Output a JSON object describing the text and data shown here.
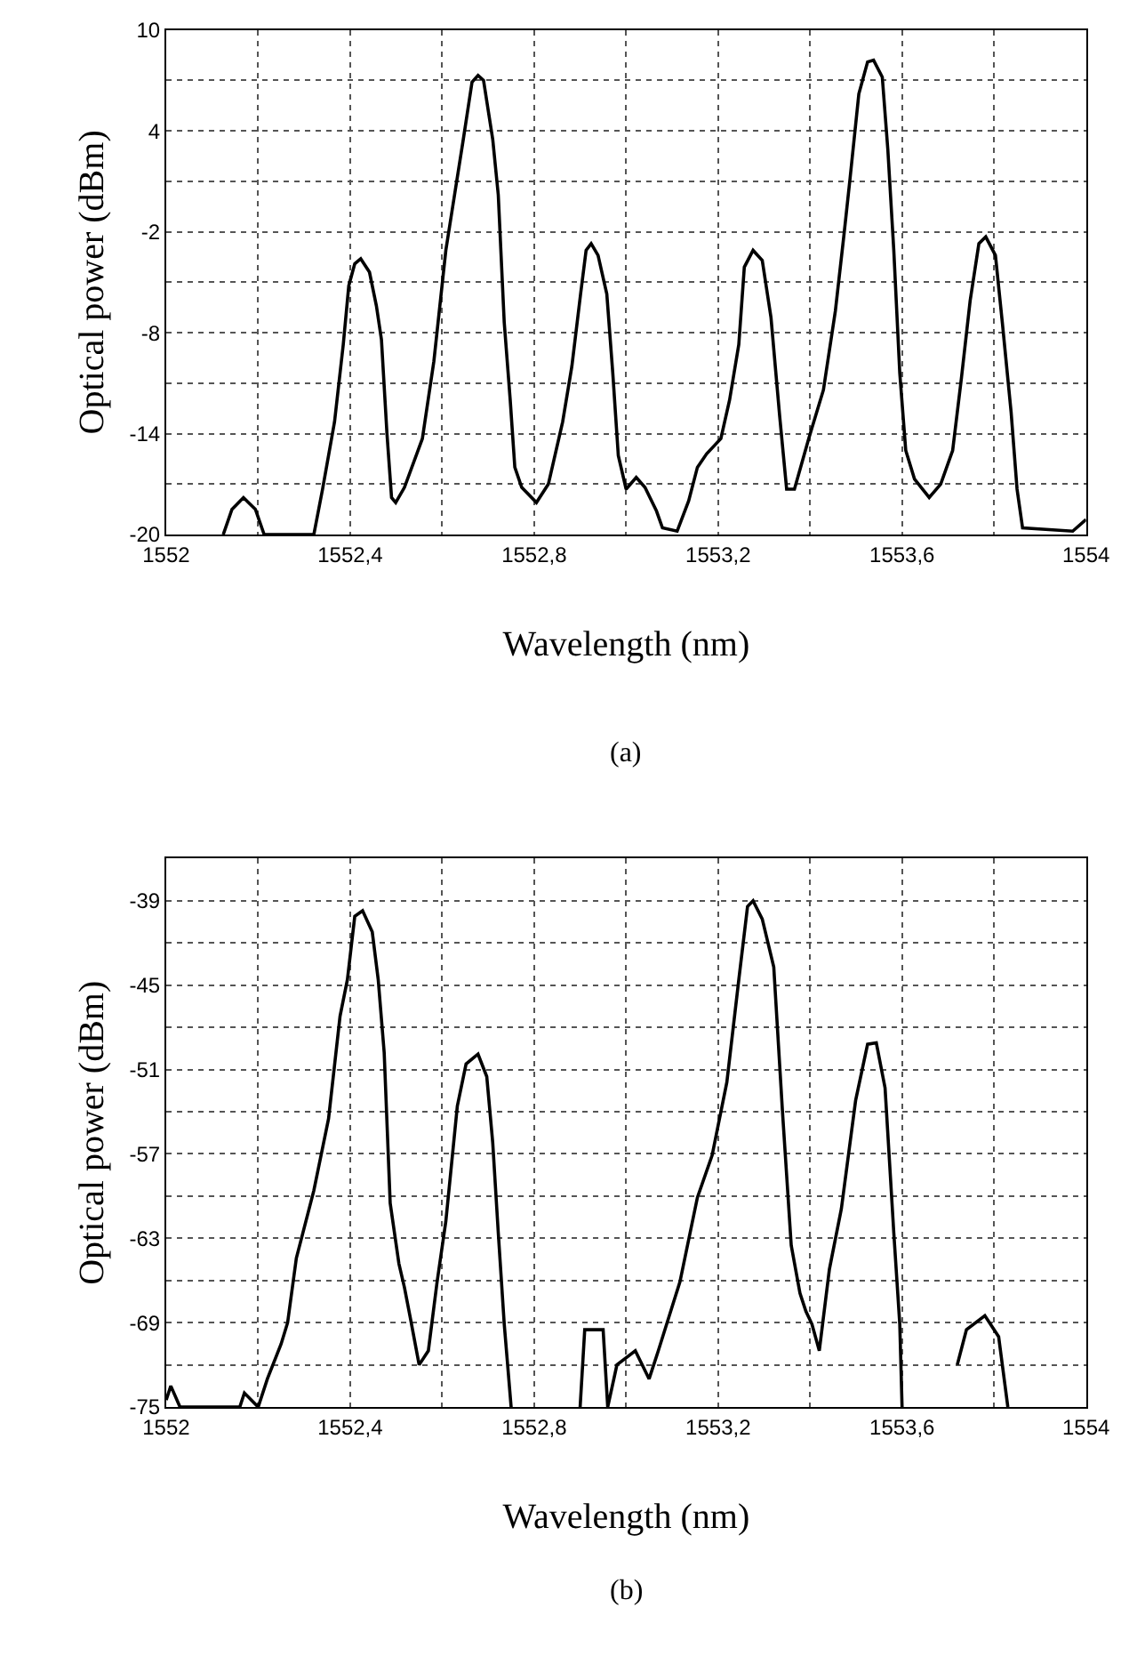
{
  "chart_data": [
    {
      "type": "line",
      "xlabel": "Wavelength (nm)",
      "ylabel": "Optical power (dBm)",
      "annotations": [
        "(a)"
      ],
      "grid": true,
      "marker": "none",
      "line_style": "solid",
      "xlim": [
        1552,
        1554
      ],
      "ylim": [
        -20,
        10
      ],
      "xticks": [
        1552,
        {
          "value": 1552.2,
          "label": null
        },
        {
          "value": 1552.4,
          "label": "1552,4"
        },
        {
          "value": 1552.6,
          "label": null
        },
        {
          "value": 1552.8,
          "label": "1552,8"
        },
        {
          "value": 1553,
          "label": null
        },
        {
          "value": 1553.2,
          "label": "1553,2"
        },
        {
          "value": 1553.4,
          "label": null
        },
        {
          "value": 1553.6,
          "label": "1553,6"
        },
        {
          "value": 1553.8,
          "label": null
        },
        1554
      ],
      "yticks": [
        -20,
        {
          "value": -17,
          "label": null
        },
        -14,
        {
          "value": -11,
          "label": null
        },
        -8,
        {
          "value": -5,
          "label": null
        },
        -2,
        {
          "value": 1,
          "label": null
        },
        4,
        {
          "value": 7,
          "label": null
        },
        10
      ],
      "series": [
        {
          "color": "#000000",
          "x": [
            1552.124,
            1552.143,
            1552.168,
            1552.194,
            1552.213,
            1552.321,
            1552.34,
            1552.366,
            1552.385,
            1552.397,
            1552.41,
            1552.423,
            1552.442,
            1552.457,
            1552.468,
            1552.48,
            1552.49,
            1552.499,
            1552.518,
            1552.557,
            1552.582,
            1552.608,
            1552.627,
            1552.646,
            1552.665,
            1552.678,
            1552.69,
            1552.71,
            1552.722,
            1552.735,
            1552.748,
            1552.758,
            1552.773,
            1552.805,
            1552.831,
            1552.862,
            1552.882,
            1552.901,
            1552.913,
            1552.924,
            1552.939,
            1552.958,
            1552.971,
            1552.983,
            1553.0,
            1553.022,
            1553.041,
            1553.066,
            1553.079,
            1553.111,
            1553.136,
            1553.155,
            1553.175,
            1553.206,
            1553.225,
            1553.245,
            1553.257,
            1553.276,
            1553.296,
            1553.315,
            1553.334,
            1553.349,
            1553.366,
            1553.397,
            1553.429,
            1553.455,
            1553.474,
            1553.487,
            1553.506,
            1553.525,
            1553.538,
            1553.557,
            1553.569,
            1553.582,
            1553.595,
            1553.608,
            1553.627,
            1553.659,
            1553.684,
            1553.71,
            1553.729,
            1553.748,
            1553.767,
            1553.782,
            1553.803,
            1553.818,
            1553.837,
            1553.85,
            1553.862,
            1553.971,
            1554.0
          ],
          "values": [
            -20,
            -18.5,
            -17.8,
            -18.5,
            -20,
            -20,
            -17.3,
            -13.3,
            -8.7,
            -5.2,
            -3.9,
            -3.6,
            -4.4,
            -6.4,
            -8.4,
            -14,
            -17.8,
            -18.1,
            -17.2,
            -14.3,
            -9.7,
            -3.1,
            0.2,
            3.5,
            6.9,
            7.3,
            7.0,
            3.5,
            0.2,
            -7.4,
            -12,
            -16,
            -17.2,
            -18.1,
            -17,
            -13.3,
            -10,
            -5.7,
            -3.1,
            -2.7,
            -3.4,
            -5.7,
            -10.4,
            -15.3,
            -17.3,
            -16.6,
            -17.2,
            -18.6,
            -19.6,
            -19.8,
            -18,
            -16,
            -15.2,
            -14.3,
            -12,
            -8.7,
            -4.1,
            -3.1,
            -3.7,
            -7.1,
            -13,
            -17.3,
            -17.3,
            -14.3,
            -11.4,
            -6.7,
            -2.1,
            1.2,
            6.2,
            8.1,
            8.2,
            7.2,
            2.9,
            -3.1,
            -10.4,
            -15,
            -16.7,
            -17.8,
            -17,
            -15,
            -10.7,
            -6.1,
            -2.7,
            -2.3,
            -3.4,
            -7.4,
            -12.7,
            -17.3,
            -19.6,
            -19.8,
            -19.1
          ]
        }
      ]
    },
    {
      "type": "line",
      "xlabel": "Wavelength (nm)",
      "ylabel": "Optical power (dBm)",
      "annotations": [
        "(b)"
      ],
      "grid": true,
      "marker": "none",
      "line_style": "solid",
      "xlim": [
        1552,
        1554
      ],
      "ylim": [
        -75,
        -36
      ],
      "xticks": [
        1552,
        {
          "value": 1552.2,
          "label": null
        },
        {
          "value": 1552.4,
          "label": "1552,4"
        },
        {
          "value": 1552.6,
          "label": null
        },
        {
          "value": 1552.8,
          "label": "1552,8"
        },
        {
          "value": 1553,
          "label": null
        },
        {
          "value": 1553.2,
          "label": "1553,2"
        },
        {
          "value": 1553.4,
          "label": null
        },
        {
          "value": 1553.6,
          "label": "1553,6"
        },
        {
          "value": 1553.8,
          "label": null
        },
        1554
      ],
      "yticks": [
        -75,
        {
          "value": -72,
          "label": null
        },
        -69,
        {
          "value": -66,
          "label": null
        },
        -63,
        {
          "value": -60,
          "label": null
        },
        -57,
        {
          "value": -54,
          "label": null
        },
        -51,
        {
          "value": -48,
          "label": null
        },
        -45,
        {
          "value": -42,
          "label": null
        },
        -39,
        {
          "value": -36,
          "label": null
        }
      ],
      "series": [
        {
          "color": "#000000",
          "x": [
            1552.0,
            1552.01,
            1552.03,
            1552.16,
            1552.17,
            1552.2,
            1552.22,
            1552.25,
            1552.264,
            1552.283,
            1552.321,
            1552.353,
            1552.378,
            1552.394,
            1552.41,
            1552.427,
            1552.448,
            1552.461,
            1552.474,
            1552.487,
            1552.506,
            1552.518,
            1552.531,
            1552.55,
            1552.57,
            1552.589,
            1552.608,
            1552.633,
            1552.652,
            1552.678,
            1552.697,
            1552.71,
            1552.722,
            1552.735,
            1552.75,
            1552.8,
            1552.9,
            1552.91,
            1552.95,
            1552.96,
            1552.98,
            1553.02,
            1553.05,
            1553.07,
            1553.117,
            1553.155,
            1553.187,
            1553.219,
            1553.245,
            1553.264,
            1553.276,
            1553.296,
            1553.321,
            1553.34,
            1553.359,
            1553.378,
            1553.391,
            1553.404,
            1553.42,
            1553.442,
            1553.468,
            1553.499,
            1553.525,
            1553.544,
            1553.563,
            1553.582,
            1553.595,
            1553.6,
            1553.65,
            1553.72,
            1553.74,
            1553.78,
            1553.81,
            1553.83
          ],
          "values": [
            -74.5,
            -73.5,
            -75,
            -75,
            -74,
            -75,
            -73,
            -70.5,
            -69,
            -64.4,
            -59.6,
            -54.5,
            -47.2,
            -44.6,
            -40.1,
            -39.7,
            -41.2,
            -44.6,
            -49.8,
            -60.5,
            -64.8,
            -66.5,
            -68.7,
            -72,
            -71,
            -66.1,
            -61.8,
            -53.6,
            -50.6,
            -49.9,
            -51.5,
            -56.2,
            -62.6,
            -69.1,
            -75,
            null,
            -75,
            -69.5,
            -69.5,
            -75,
            -72,
            -71,
            -73,
            -71,
            -66.1,
            -60.1,
            -57.1,
            -51.9,
            -44.6,
            -39.4,
            -39,
            -40.3,
            -43.7,
            -54,
            -63.5,
            -66.9,
            -68.2,
            -69.1,
            -71,
            -65.2,
            -60.9,
            -53.2,
            -49.2,
            -49.1,
            -52.3,
            -62.6,
            -69.1,
            -75,
            null,
            -72,
            -69.5,
            -68.5,
            -70,
            -75
          ]
        }
      ]
    }
  ]
}
